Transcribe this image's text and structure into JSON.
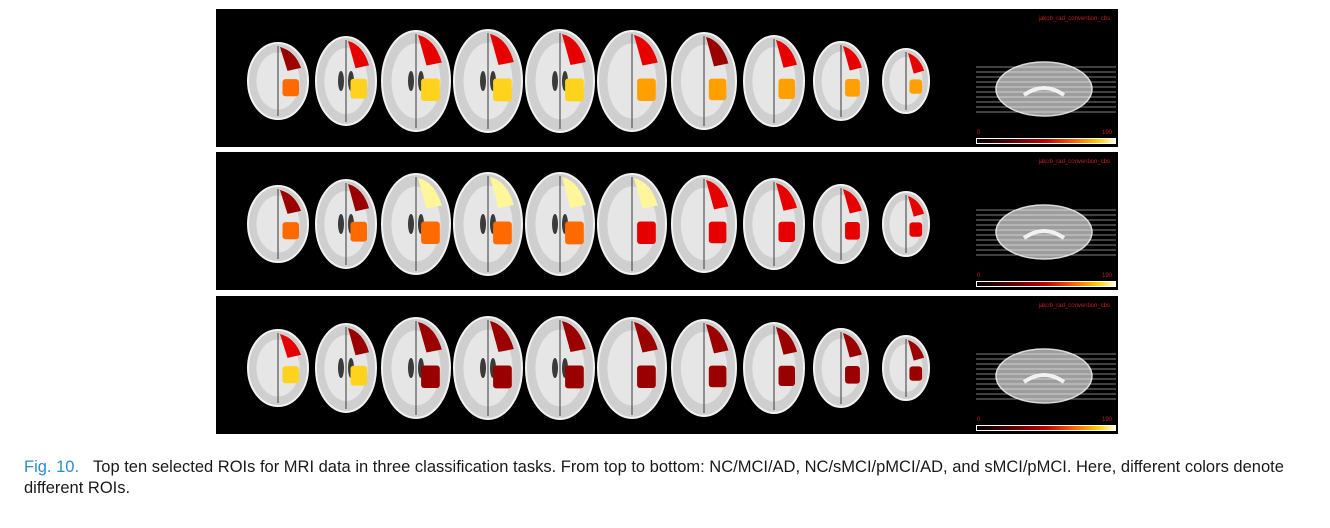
{
  "figure": {
    "panels": [
      {
        "task": "NC/MCI/AD",
        "atlas_label": "jakob_rad_convention_cbs",
        "colorbar_min": "0",
        "colorbar_max": "190"
      },
      {
        "task": "NC/sMCI/pMCI/AD",
        "atlas_label": "jakob_rad_convention_cbs",
        "colorbar_min": "0",
        "colorbar_max": "190"
      },
      {
        "task": "sMCI/pMCI",
        "atlas_label": "jakob_rad_convention_cbs",
        "colorbar_min": "0",
        "colorbar_max": "190"
      }
    ]
  },
  "caption": {
    "label": "Fig. 10.",
    "text": "Top ten selected ROIs for MRI data in three classification tasks. From top to bottom: NC/MCI/AD, NC/sMCI/pMCI/AD, and sMCI/pMCI. Here, different colors denote different ROIs."
  },
  "colors": {
    "roi_dark_red": "#9b0000",
    "roi_red": "#e60000",
    "roi_orange": "#ff6a00",
    "roi_amber": "#ffa000",
    "roi_yellow": "#ffd21e",
    "roi_pale_yellow": "#fff59a",
    "caption_label": "#2a8fc8"
  }
}
